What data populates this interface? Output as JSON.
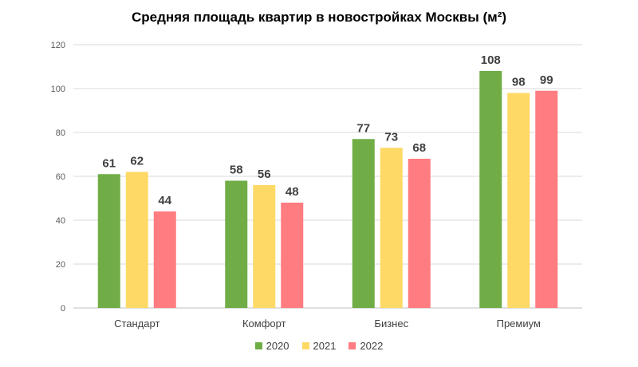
{
  "chart_data": {
    "type": "bar",
    "title": "Средняя площадь квартир в новостройках Москвы (м²)",
    "xlabel": "",
    "ylabel": "",
    "categories": [
      "Стандарт",
      "Комфорт",
      "Бизнес",
      "Премиум"
    ],
    "ylim": [
      0,
      120
    ],
    "yticks": [
      0,
      20,
      40,
      60,
      80,
      100,
      120
    ],
    "grid": true,
    "legend_position": "bottom",
    "data_labels": true,
    "series": [
      {
        "name": "2020",
        "color": "#70AD47",
        "values": [
          61,
          58,
          77,
          108
        ]
      },
      {
        "name": "2021",
        "color": "#FFD966",
        "values": [
          62,
          56,
          73,
          98
        ]
      },
      {
        "name": "2022",
        "color": "#FF7C80",
        "values": [
          44,
          48,
          68,
          99
        ]
      }
    ]
  }
}
